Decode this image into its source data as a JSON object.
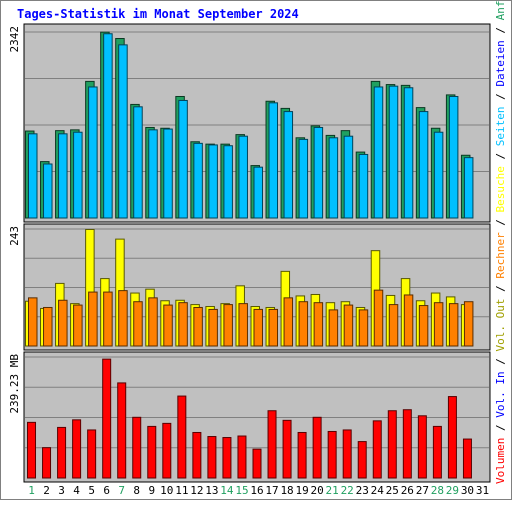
{
  "chart_data": {
    "type": "bar",
    "title": "Tages-Statistik im Monat September 2024",
    "days": [
      "1",
      "2",
      "3",
      "4",
      "5",
      "6",
      "7",
      "8",
      "9",
      "10",
      "11",
      "12",
      "13",
      "14",
      "15",
      "16",
      "17",
      "18",
      "19",
      "20",
      "21",
      "22",
      "23",
      "24",
      "25",
      "26",
      "27",
      "28",
      "29",
      "30",
      "31"
    ],
    "weekend_days": [
      1,
      7,
      14,
      15,
      21,
      22,
      28,
      29
    ],
    "grid": true,
    "panels": [
      {
        "id": "requests",
        "max_label": "2342",
        "ylim": [
          0,
          2342
        ],
        "series": [
          {
            "name": "Anfragen",
            "color": "#20a060",
            "values": [
              1095,
              710,
              1100,
              1110,
              1720,
              2340,
              2260,
              1430,
              1140,
              1130,
              1530,
              960,
              930,
              930,
              1050,
              660,
              1470,
              1380,
              1010,
              1160,
              1040,
              1100,
              830,
              1720,
              1680,
              1670,
              1390,
              1130,
              1550,
              790,
              null
            ]
          },
          {
            "name": "Dateien",
            "color": "#00c0ff",
            "values": [
              1060,
              680,
              1060,
              1080,
              1650,
              2320,
              2180,
              1400,
              1110,
              1120,
              1480,
              940,
              920,
              910,
              1030,
              640,
              1450,
              1340,
              990,
              1140,
              1010,
              1030,
              800,
              1650,
              1660,
              1640,
              1340,
              1080,
              1530,
              760,
              null
            ]
          }
        ]
      },
      {
        "id": "visits",
        "max_label": "243",
        "ylim": [
          0,
          243
        ],
        "series": [
          {
            "name": "Besuche",
            "color": "#ffff00",
            "values": [
              93,
              78,
              130,
              88,
              242,
              140,
              222,
              110,
              118,
              94,
              95,
              86,
              82,
              88,
              125,
              82,
              80,
              155,
              104,
              107,
              90,
              92,
              80,
              198,
              105,
              140,
              94,
              110,
              102,
              86,
              null
            ]
          },
          {
            "name": "Rechner",
            "color": "#ff8000",
            "values": [
              100,
              80,
              95,
              85,
              112,
              112,
              115,
              92,
              100,
              85,
              90,
              80,
              76,
              86,
              88,
              76,
              76,
              100,
              92,
              90,
              75,
              85,
              75,
              116,
              86,
              106,
              84,
              90,
              88,
              92,
              null
            ]
          }
        ]
      },
      {
        "id": "volume",
        "max_label": "239.23 MB",
        "ylim": [
          0,
          239.23
        ],
        "series": [
          {
            "name": "Volumen",
            "color": "#ff0000",
            "values": [
              110,
              60,
              100,
              115,
              95,
              235,
              188,
              120,
              102,
              108,
              162,
              90,
              82,
              80,
              83,
              57,
              133,
              114,
              90,
              120,
              92,
              95,
              72,
              113,
              133,
              135,
              123,
              102,
              161,
              77,
              null
            ]
          }
        ]
      }
    ],
    "legend": {
      "position": "right",
      "entries": [
        {
          "text": "Volumen",
          "color": "#ff0000"
        },
        {
          "text": " / ",
          "color": "#000000"
        },
        {
          "text": "Vol. In",
          "color": "#0000ff"
        },
        {
          "text": " / ",
          "color": "#000000"
        },
        {
          "text": "Vol. Out",
          "color": "#a0a000"
        },
        {
          "text": " / ",
          "color": "#000000"
        },
        {
          "text": "Rechner",
          "color": "#ff8000"
        },
        {
          "text": " / ",
          "color": "#000000"
        },
        {
          "text": "Besuche",
          "color": "#ffff00"
        },
        {
          "text": " / ",
          "color": "#000000"
        },
        {
          "text": "Seiten",
          "color": "#00c0ff"
        },
        {
          "text": " / ",
          "color": "#000000"
        },
        {
          "text": "Dateien",
          "color": "#0000ff"
        },
        {
          "text": " / ",
          "color": "#000000"
        },
        {
          "text": "Anfragen",
          "color": "#20a060"
        }
      ]
    },
    "colors": {
      "title": "#0000ff",
      "plot_bg": "#c0c0c0",
      "frame_bg": "#ffffff",
      "grid": "#808080",
      "weekday_label": "#000000",
      "weekend_label": "#20a060"
    }
  }
}
